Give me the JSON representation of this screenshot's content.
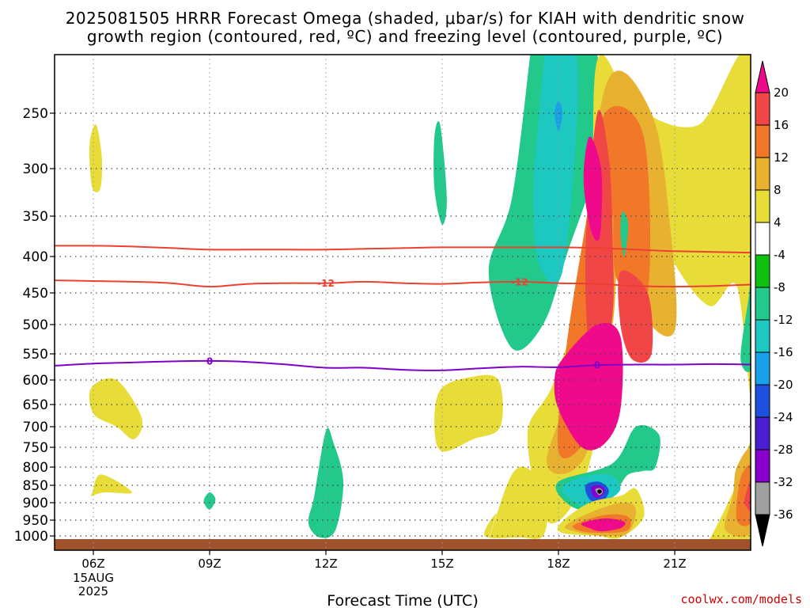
{
  "chart_data": {
    "type": "heatmap",
    "title_line1": "2025081505 HRRR Forecast Omega (shaded, μbar/s) for KIAH with dendritic snow",
    "title_line2": "growth region (contoured, red, ºC) and freezing level (contoured, purple, ºC)",
    "xlabel": "Forecast Time (UTC)",
    "ylabel": "",
    "credit": "coolwx.com/models",
    "x_ticks": [
      {
        "label": "06Z",
        "hour": 6,
        "sub": [
          "15AUG",
          "2025"
        ]
      },
      {
        "label": "09Z",
        "hour": 9,
        "sub": []
      },
      {
        "label": "12Z",
        "hour": 12,
        "sub": []
      },
      {
        "label": "15Z",
        "hour": 15,
        "sub": []
      },
      {
        "label": "18Z",
        "hour": 18,
        "sub": []
      },
      {
        "label": "21Z",
        "hour": 21,
        "sub": []
      }
    ],
    "xlim": [
      5,
      23
    ],
    "y_ticks": [
      250,
      300,
      350,
      400,
      450,
      500,
      550,
      600,
      650,
      700,
      750,
      800,
      850,
      900,
      950,
      1000
    ],
    "ylim_pressure_hpa": [
      200,
      1020
    ],
    "grid": true,
    "colorbar": {
      "levels": [
        -36,
        -32,
        -28,
        -24,
        -20,
        -16,
        -12,
        -8,
        -4,
        4,
        8,
        12,
        16,
        20
      ],
      "colors": [
        "#000000",
        "#a0a0a0",
        "#8800cc",
        "#4a1fd0",
        "#1e50e0",
        "#1aa0e8",
        "#1cc8c0",
        "#22c98a",
        "#10c010",
        "#ffffff",
        "#e8dc38",
        "#e8b230",
        "#f07828",
        "#f04646",
        "#ee0a8a"
      ]
    },
    "contours": [
      {
        "field": "temperature",
        "value": -12,
        "label": "-12",
        "color": "#ee4030",
        "hour": [
          5,
          6,
          7,
          8,
          9,
          10,
          11,
          12,
          13,
          14,
          15,
          16,
          17,
          18,
          19,
          20,
          21,
          22,
          23
        ],
        "pressure": [
          432,
          433,
          434,
          436,
          441,
          437,
          436,
          436,
          434,
          436,
          437,
          435,
          434,
          436,
          437,
          440,
          441,
          440,
          438
        ]
      },
      {
        "field": "temperature",
        "value": -12,
        "label": "",
        "color": "#ee4030",
        "hour": [
          5,
          6,
          7,
          8,
          9,
          10,
          11,
          12,
          13,
          14,
          15,
          16,
          17,
          18,
          19,
          20,
          21,
          22,
          23
        ],
        "pressure": [
          386,
          386,
          387,
          389,
          391,
          391,
          391,
          391,
          390,
          389,
          388,
          388,
          388,
          388,
          389,
          391,
          393,
          394,
          395
        ]
      },
      {
        "field": "freezing_level",
        "value": 0,
        "label": "0",
        "color": "#8000c8",
        "hour": [
          5,
          6,
          7,
          8,
          9,
          10,
          11,
          12,
          13,
          14,
          15,
          16,
          17,
          18,
          19,
          20,
          21,
          22,
          23
        ],
        "pressure": [
          572,
          568,
          566,
          564,
          563,
          565,
          570,
          576,
          576,
          580,
          581,
          577,
          574,
          575,
          571,
          570,
          570,
          569,
          570
        ]
      }
    ],
    "regions": [
      {
        "value": 6,
        "hour": [
          6.08,
          6.22,
          6.18,
          5.98,
          5.9,
          5.93
        ],
        "pressure": [
          260,
          290,
          320,
          320,
          290,
          270
        ]
      },
      {
        "value": 6,
        "hour": [
          5.95,
          6.6,
          7.25,
          7.05,
          6.6,
          6.0
        ],
        "pressure": [
          615,
          600,
          680,
          730,
          700,
          670
        ]
      },
      {
        "value": 6,
        "hour": [
          5.97,
          6.2,
          7.0,
          6.3,
          5.95
        ],
        "pressure": [
          872,
          820,
          870,
          870,
          880
        ]
      },
      {
        "value": -10,
        "hour": [
          8.85,
          9.0,
          9.15,
          9.0
        ],
        "pressure": [
          895,
          870,
          890,
          920
        ]
      },
      {
        "value": -10,
        "hour": [
          12.0,
          12.2,
          12.45,
          12.25,
          11.85,
          11.55,
          11.7
        ],
        "pressure": [
          710,
          740,
          840,
          980,
          1005,
          960,
          880
        ]
      },
      {
        "value": -10,
        "hour": [
          14.8,
          14.95,
          15.12,
          15.0,
          14.8
        ],
        "pressure": [
          270,
          260,
          330,
          360,
          320
        ]
      },
      {
        "value": 6,
        "hour": [
          14.95,
          15.7,
          16.45,
          16.5,
          15.8,
          15.0,
          14.8
        ],
        "pressure": [
          620,
          595,
          600,
          700,
          730,
          760,
          700
        ]
      },
      {
        "value": 6,
        "hour": [
          16.2,
          16.8,
          17.3,
          17.7,
          17.6,
          17.0,
          16.1,
          16.4
        ],
        "pressure": [
          1010,
          820,
          810,
          900,
          1000,
          1005,
          1000,
          930
        ]
      },
      {
        "value": -10,
        "hour": [
          17.4,
          18.6,
          19.2,
          18.2,
          17.6,
          16.8,
          16.2,
          16.8,
          17.3
        ],
        "pressure": [
          180,
          180,
          260,
          400,
          500,
          540,
          420,
          330,
          200
        ]
      },
      {
        "value": -14,
        "hour": [
          17.8,
          18.3,
          18.5,
          18.1,
          17.5,
          17.35,
          17.5
        ],
        "pressure": [
          180,
          180,
          240,
          420,
          410,
          330,
          250
        ]
      },
      {
        "value": -18,
        "hour": [
          18.0,
          18.1,
          18.0,
          17.9
        ],
        "pressure": [
          240,
          250,
          265,
          250
        ]
      },
      {
        "value": 6,
        "hour": [
          19.0,
          20.0,
          21.6,
          23.0,
          23.0,
          22.6,
          21.9,
          21.0,
          20.2,
          20.1,
          19.4,
          18.9,
          17.8,
          17.2,
          17.9,
          18.8
        ],
        "pressure": [
          210,
          245,
          260,
          210,
          620,
          440,
          470,
          410,
          330,
          320,
          350,
          750,
          960,
          720,
          600,
          400
        ]
      },
      {
        "value": 6,
        "hour": [
          21.8,
          22.5,
          23.0,
          23.0,
          22.4,
          21.5
        ],
        "pressure": [
          1030,
          870,
          740,
          1030,
          1030,
          1030
        ]
      },
      {
        "value": 10,
        "hour": [
          19.2,
          20.4,
          20.9,
          21.0,
          20.2,
          19.6,
          19.4,
          18.7,
          17.7,
          18.4
        ],
        "pressure": [
          230,
          250,
          370,
          510,
          480,
          340,
          500,
          770,
          790,
          560
        ]
      },
      {
        "value": 10,
        "hour": [
          22.6,
          23.0,
          23.0,
          22.3,
          22.5
        ],
        "pressure": [
          800,
          760,
          980,
          980,
          880
        ]
      },
      {
        "value": 14,
        "hour": [
          19.2,
          20.2,
          20.3,
          19.5,
          19.4,
          19.2,
          18.7,
          18.0,
          18.2,
          18.7
        ],
        "pressure": [
          250,
          270,
          450,
          430,
          350,
          560,
          730,
          760,
          540,
          360
        ]
      },
      {
        "value": 14,
        "hour": [
          22.7,
          23.0,
          23.0,
          22.6
        ],
        "pressure": [
          830,
          800,
          950,
          950
        ]
      },
      {
        "value": 18,
        "hour": [
          19.0,
          19.3,
          19.4,
          19.4,
          19.1,
          18.8,
          18.7
        ],
        "pressure": [
          250,
          290,
          380,
          480,
          580,
          550,
          390
        ]
      },
      {
        "value": 18,
        "hour": [
          19.6,
          20.3,
          20.4,
          19.9,
          19.6
        ],
        "pressure": [
          420,
          450,
          550,
          560,
          500
        ]
      },
      {
        "value": 18,
        "hour": [
          22.9,
          23.0,
          23.0,
          22.8
        ],
        "pressure": [
          850,
          830,
          920,
          900
        ]
      },
      {
        "value": 22,
        "hour": [
          18.8,
          19.1,
          19.1,
          19.0,
          18.8,
          18.65
        ],
        "pressure": [
          270,
          300,
          360,
          380,
          360,
          310
        ]
      },
      {
        "value": 22,
        "hour": [
          18.1,
          19.0,
          19.6,
          19.6,
          19.2,
          18.6,
          18.0,
          17.9
        ],
        "pressure": [
          560,
          500,
          520,
          660,
          740,
          750,
          660,
          600
        ]
      },
      {
        "value": -10,
        "hour": [
          19.4,
          20.0,
          20.6,
          20.5,
          20.2,
          19.8,
          19.5,
          18.8,
          18.2,
          18.0
        ],
        "pressure": [
          790,
          700,
          720,
          800,
          810,
          820,
          860,
          920,
          900,
          840
        ]
      },
      {
        "value": -10,
        "hour": [
          19.65,
          19.8,
          19.7,
          19.6
        ],
        "pressure": [
          345,
          360,
          400,
          370
        ]
      },
      {
        "value": -10,
        "hour": [
          22.9,
          23.0,
          23.0,
          22.7
        ],
        "pressure": [
          460,
          420,
          570,
          560
        ]
      },
      {
        "value": -14,
        "hour": [
          18.5,
          19.3,
          19.6,
          19.2,
          18.9,
          18.3,
          18.1
        ],
        "pressure": [
          830,
          820,
          860,
          900,
          920,
          890,
          860
        ]
      },
      {
        "value": -22,
        "hour": [
          18.7,
          19.05,
          19.3,
          19.1,
          18.8
        ],
        "pressure": [
          850,
          840,
          865,
          900,
          890
        ]
      },
      {
        "value": -30,
        "hour": [
          18.85,
          19.05,
          19.2,
          19.05,
          18.9
        ],
        "pressure": [
          855,
          850,
          865,
          885,
          880
        ]
      },
      {
        "value": -34,
        "hour": [
          18.95,
          19.07,
          19.15,
          19.05
        ],
        "pressure": [
          862,
          858,
          868,
          878
        ]
      },
      {
        "value": -38,
        "hour": [
          19.0,
          19.07,
          19.12,
          19.05
        ],
        "pressure": [
          866,
          862,
          868,
          874
        ]
      },
      {
        "value": 6,
        "hour": [
          18.05,
          18.8,
          19.6,
          20.0,
          20.2,
          19.6,
          19.0,
          18.1
        ],
        "pressure": [
          960,
          900,
          880,
          860,
          940,
          1005,
          1000,
          990
        ]
      },
      {
        "value": 10,
        "hour": [
          18.2,
          19.0,
          19.7,
          20.0,
          19.8,
          19.2,
          18.4
        ],
        "pressure": [
          965,
          920,
          900,
          920,
          990,
          1000,
          985
        ]
      },
      {
        "value": 14,
        "hour": [
          18.4,
          19.2,
          19.8,
          19.8,
          19.3,
          18.6
        ],
        "pressure": [
          965,
          935,
          940,
          980,
          990,
          985
        ]
      },
      {
        "value": 22,
        "hour": [
          18.6,
          19.2,
          19.7,
          19.6,
          19.1,
          18.8
        ],
        "pressure": [
          960,
          945,
          955,
          975,
          985,
          975
        ]
      }
    ]
  }
}
